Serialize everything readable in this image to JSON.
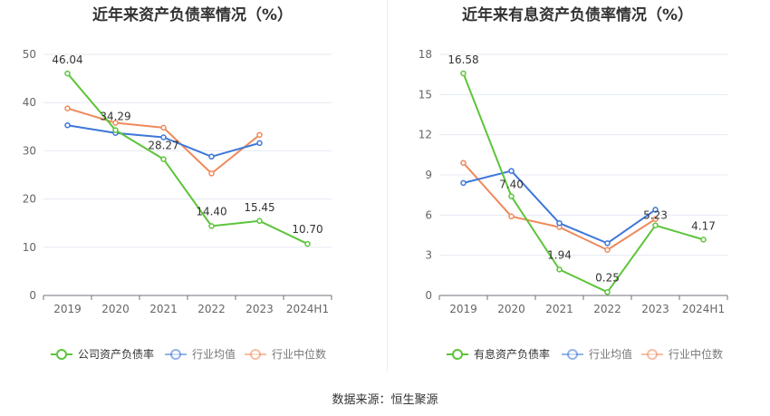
{
  "source_label": "数据来源：恒生聚源",
  "colors": {
    "company": "#5cc53a",
    "average": "#3d77d9",
    "median": "#ef8a5b",
    "grid": "#e5e9f2",
    "axis_text": "#666666"
  },
  "chart_data": [
    {
      "type": "line",
      "title": "近年来资产负债率情况（%）",
      "categories": [
        "2019",
        "2020",
        "2021",
        "2022",
        "2023",
        "2024H1"
      ],
      "ylim": [
        0,
        50
      ],
      "yticks": [
        0,
        10,
        20,
        30,
        40,
        50
      ],
      "series": [
        {
          "name": "公司资产负债率",
          "key": "company",
          "values": [
            46.04,
            34.29,
            28.27,
            14.4,
            15.45,
            10.7
          ],
          "labels": [
            "46.04",
            "34.29",
            "28.27",
            "14.40",
            "15.45",
            "10.70"
          ]
        },
        {
          "name": "行业均值",
          "key": "average",
          "values": [
            35.3,
            33.7,
            32.8,
            28.8,
            31.6,
            null
          ]
        },
        {
          "name": "行业中位数",
          "key": "median",
          "values": [
            38.8,
            35.8,
            34.8,
            25.3,
            33.3,
            null
          ]
        }
      ],
      "legend": "bottom"
    },
    {
      "type": "line",
      "title": "近年来有息资产负债率情况（%）",
      "categories": [
        "2019",
        "2020",
        "2021",
        "2022",
        "2023",
        "2024H1"
      ],
      "ylim": [
        0,
        18
      ],
      "yticks": [
        0,
        3,
        6,
        9,
        12,
        15,
        18
      ],
      "series": [
        {
          "name": "有息资产负债率",
          "key": "company",
          "values": [
            16.58,
            7.4,
            1.94,
            0.25,
            5.23,
            4.17
          ],
          "labels": [
            "16.58",
            "7.40",
            "1.94",
            "0.25",
            "5.23",
            "4.17"
          ]
        },
        {
          "name": "行业均值",
          "key": "average",
          "values": [
            8.4,
            9.3,
            5.4,
            3.9,
            6.4,
            null
          ]
        },
        {
          "name": "行业中位数",
          "key": "median",
          "values": [
            9.9,
            5.9,
            5.1,
            3.4,
            5.7,
            null
          ]
        }
      ],
      "legend": "bottom"
    }
  ]
}
